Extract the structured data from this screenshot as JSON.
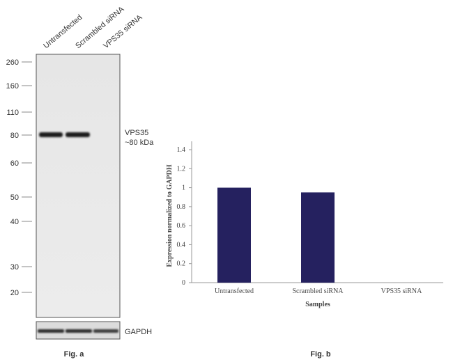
{
  "figure_a": {
    "lanes": [
      "Untransfected",
      "Scrambled siRNA",
      "VPS35 siRNA"
    ],
    "markers": [
      260,
      160,
      110,
      80,
      60,
      50,
      40,
      30,
      20
    ],
    "band_label": "VPS35",
    "band_size": "~80 kDa",
    "loading_control": "GAPDH",
    "caption": "Fig. a"
  },
  "chart_data": {
    "type": "bar",
    "caption": "Fig. b",
    "x_label": "Samples",
    "y_label": "Expression normalized to GAPDH",
    "categories": [
      "Untransfected",
      "Scrambled siRNA",
      "VPS35 siRNA"
    ],
    "values": [
      1,
      0.95,
      0
    ],
    "color": "#25215f",
    "ylim": [
      0,
      1.4
    ],
    "yticks": [
      0,
      0.2,
      0.4,
      0.6,
      0.8,
      1,
      1.2,
      1.4
    ]
  }
}
